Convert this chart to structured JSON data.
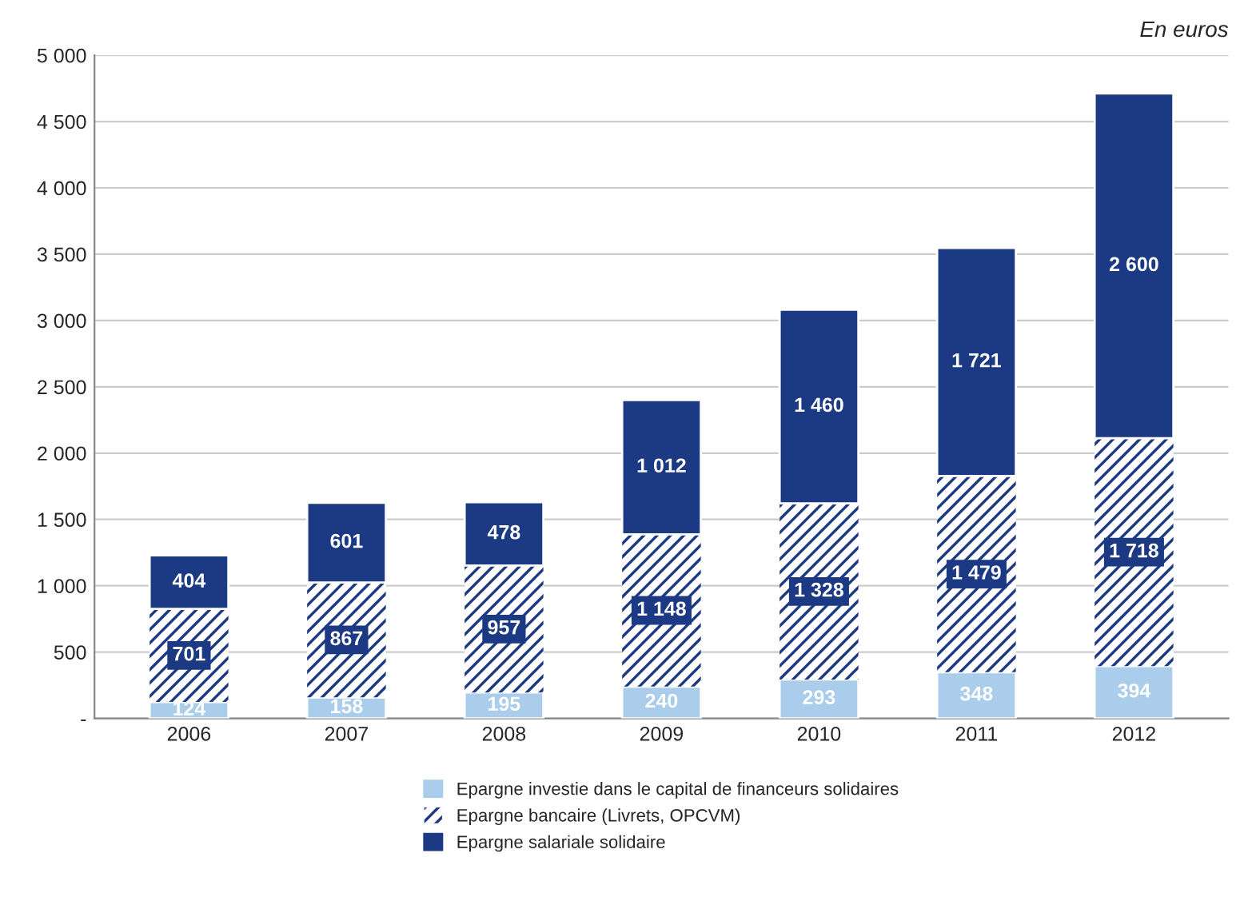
{
  "chart_data": {
    "type": "bar",
    "stacked": true,
    "categories": [
      "2006",
      "2007",
      "2008",
      "2009",
      "2010",
      "2011",
      "2012"
    ],
    "series": [
      {
        "name": "Epargne investie dans le capital de financeurs solidaires",
        "color": "#a9cdea",
        "values": [
          124,
          158,
          195,
          240,
          293,
          348,
          394
        ],
        "value_labels": [
          "124",
          "158",
          "195",
          "240",
          "293",
          "348",
          "394"
        ]
      },
      {
        "name": "Epargne bancaire (Livrets, OPCVM)",
        "color": "#1c3a84",
        "values": [
          701,
          867,
          957,
          1148,
          1328,
          1479,
          1718
        ],
        "value_labels": [
          "701",
          "867",
          "957",
          "1 148",
          "1 328",
          "1 479",
          "1 718"
        ]
      },
      {
        "name": "Epargne salariale solidaire",
        "color": "#1c3a84",
        "values": [
          404,
          601,
          478,
          1012,
          1460,
          1721,
          2600
        ],
        "value_labels": [
          "404",
          "601",
          "478",
          "1 012",
          "1 460",
          "1 721",
          "2 600"
        ]
      }
    ],
    "ylim": [
      0,
      5000
    ],
    "yticks": [
      {
        "value": 0,
        "label": "-"
      },
      {
        "value": 500,
        "label": "500"
      },
      {
        "value": 1000,
        "label": "1 000"
      },
      {
        "value": 1500,
        "label": "1 500"
      },
      {
        "value": 2000,
        "label": "2 000"
      },
      {
        "value": 2500,
        "label": "2 500"
      },
      {
        "value": 3000,
        "label": "3 000"
      },
      {
        "value": 3500,
        "label": "3 500"
      },
      {
        "value": 4000,
        "label": "4 000"
      },
      {
        "value": 4500,
        "label": "4 500"
      },
      {
        "value": 5000,
        "label": "5 000"
      }
    ],
    "grid": "y",
    "legend": "bottom",
    "annotations": [
      "En euros"
    ]
  }
}
